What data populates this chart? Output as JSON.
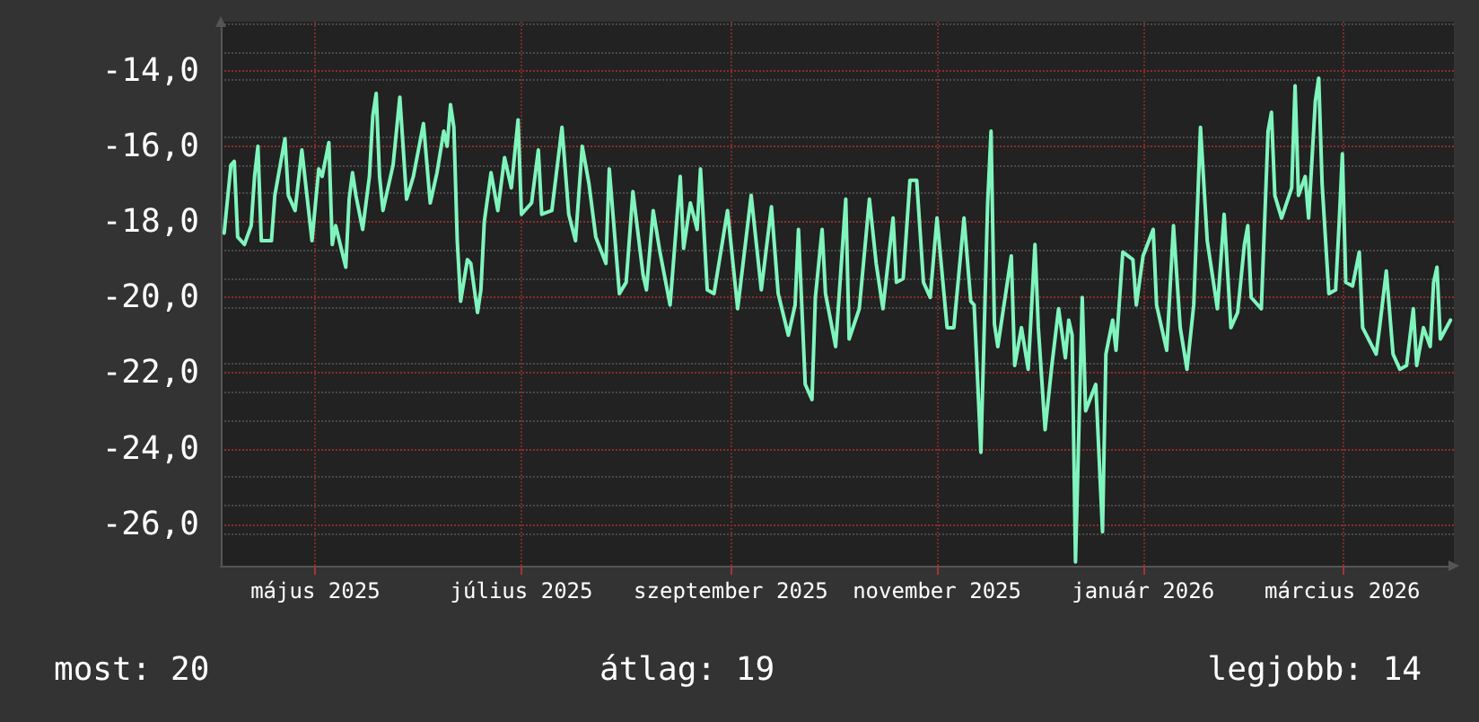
{
  "chart_data": {
    "type": "line",
    "color": "#7ff5bd",
    "grid": true,
    "marker": "none",
    "line_style": "solid",
    "annotations": [
      "most: 20",
      "átlag: 19",
      "legjobb: 14"
    ],
    "xlim": [
      "2025-04-03",
      "2026-04-03"
    ],
    "xticks": [
      {
        "value": "2025-05-01",
        "label": "május 2025"
      },
      {
        "value": "2025-07-01",
        "label": "július 2025"
      },
      {
        "value": "2025-09-01",
        "label": "szeptember 2025"
      },
      {
        "value": "2025-11-01",
        "label": "november 2025"
      },
      {
        "value": "2026-01-01",
        "label": "január 2026"
      },
      {
        "value": "2026-03-01",
        "label": "március 2026"
      }
    ],
    "ylim": [
      -27.1,
      -12.7
    ],
    "yticks": [
      {
        "value": -26,
        "label": "-26,0"
      },
      {
        "value": -24,
        "label": "-24,0"
      },
      {
        "value": -22,
        "label": "-22,0"
      },
      {
        "value": -20,
        "label": "-20,0"
      },
      {
        "value": -18,
        "label": "-18,0"
      },
      {
        "value": -16,
        "label": "-16,0"
      },
      {
        "value": -14,
        "label": "-14,0"
      }
    ],
    "x": [
      "2025-04-04",
      "2025-04-06",
      "2025-04-07",
      "2025-04-08",
      "2025-04-10",
      "2025-04-12",
      "2025-04-13",
      "2025-04-14",
      "2025-04-15",
      "2025-04-18",
      "2025-04-19",
      "2025-04-22",
      "2025-04-23",
      "2025-04-25",
      "2025-04-27",
      "2025-04-30",
      "2025-05-02",
      "2025-05-03",
      "2025-05-05",
      "2025-05-06",
      "2025-05-07",
      "2025-05-10",
      "2025-05-11",
      "2025-05-12",
      "2025-05-13",
      "2025-05-15",
      "2025-05-17",
      "2025-05-18",
      "2025-05-19",
      "2025-05-20",
      "2025-05-21",
      "2025-05-24",
      "2025-05-26",
      "2025-05-28",
      "2025-05-30",
      "2025-06-02",
      "2025-06-04",
      "2025-06-06",
      "2025-06-08",
      "2025-06-09",
      "2025-06-10",
      "2025-06-11",
      "2025-06-12",
      "2025-06-13",
      "2025-06-15",
      "2025-06-16",
      "2025-06-18",
      "2025-06-19",
      "2025-06-20",
      "2025-06-22",
      "2025-06-24",
      "2025-06-26",
      "2025-06-28",
      "2025-06-30",
      "2025-07-01",
      "2025-07-04",
      "2025-07-06",
      "2025-07-07",
      "2025-07-10",
      "2025-07-13",
      "2025-07-15",
      "2025-07-17",
      "2025-07-19",
      "2025-07-21",
      "2025-07-23",
      "2025-07-26",
      "2025-07-27",
      "2025-07-30",
      "2025-08-01",
      "2025-08-03",
      "2025-08-06",
      "2025-08-07",
      "2025-08-09",
      "2025-08-11",
      "2025-08-14",
      "2025-08-17",
      "2025-08-18",
      "2025-08-20",
      "2025-08-22",
      "2025-08-23",
      "2025-08-25",
      "2025-08-27",
      "2025-08-31",
      "2025-09-03",
      "2025-09-07",
      "2025-09-10",
      "2025-09-13",
      "2025-09-15",
      "2025-09-18",
      "2025-09-20",
      "2025-09-21",
      "2025-09-23",
      "2025-09-25",
      "2025-09-26",
      "2025-09-28",
      "2025-09-29",
      "2025-10-02",
      "2025-10-05",
      "2025-10-06",
      "2025-10-09",
      "2025-10-12",
      "2025-10-14",
      "2025-10-16",
      "2025-10-19",
      "2025-10-20",
      "2025-10-22",
      "2025-10-24",
      "2025-10-26",
      "2025-10-28",
      "2025-10-30",
      "2025-11-01",
      "2025-11-04",
      "2025-11-06",
      "2025-11-09",
      "2025-11-11",
      "2025-11-12",
      "2025-11-14",
      "2025-11-16",
      "2025-11-17",
      "2025-11-18",
      "2025-11-19",
      "2025-11-20",
      "2025-11-23",
      "2025-11-24",
      "2025-11-26",
      "2025-11-28",
      "2025-11-30",
      "2025-12-01",
      "2025-12-03",
      "2025-12-05",
      "2025-12-07",
      "2025-12-09",
      "2025-12-10",
      "2025-12-11",
      "2025-12-12",
      "2025-12-14",
      "2025-12-15",
      "2025-12-18",
      "2025-12-20",
      "2025-12-21",
      "2025-12-23",
      "2025-12-24",
      "2025-12-26",
      "2025-12-29",
      "2025-12-30",
      "2026-01-01",
      "2026-01-04",
      "2026-01-05",
      "2026-01-08",
      "2026-01-10",
      "2026-01-12",
      "2026-01-14",
      "2026-01-16",
      "2026-01-18",
      "2026-01-20",
      "2026-01-23",
      "2026-01-25",
      "2026-01-27",
      "2026-01-29",
      "2026-01-31",
      "2026-02-01",
      "2026-02-02",
      "2026-02-05",
      "2026-02-07",
      "2026-02-08",
      "2026-02-09",
      "2026-02-11",
      "2026-02-14",
      "2026-02-15",
      "2026-02-16",
      "2026-02-18",
      "2026-02-19",
      "2026-02-21",
      "2026-02-22",
      "2026-02-23",
      "2026-02-25",
      "2026-02-27",
      "2026-02-28",
      "2026-03-01",
      "2026-03-02",
      "2026-03-04",
      "2026-03-06",
      "2026-03-07",
      "2026-03-11",
      "2026-03-12",
      "2026-03-14",
      "2026-03-16",
      "2026-03-18",
      "2026-03-20",
      "2026-03-22",
      "2026-03-23",
      "2026-03-25",
      "2026-03-27",
      "2026-03-28",
      "2026-03-29",
      "2026-03-30",
      "2026-04-02"
    ],
    "values": [
      -18.3,
      -16.5,
      -16.4,
      -18.4,
      -18.6,
      -18.1,
      -16.8,
      -16.0,
      -18.5,
      -18.5,
      -17.3,
      -15.8,
      -17.3,
      -17.7,
      -16.1,
      -18.5,
      -16.6,
      -16.8,
      -15.9,
      -18.6,
      -18.1,
      -19.2,
      -17.4,
      -16.7,
      -17.3,
      -18.2,
      -16.8,
      -15.2,
      -14.6,
      -16.8,
      -17.7,
      -16.5,
      -14.7,
      -17.4,
      -16.8,
      -15.4,
      -17.5,
      -16.7,
      -15.6,
      -16.0,
      -14.9,
      -15.5,
      -18.5,
      -20.1,
      -19.0,
      -19.1,
      -20.4,
      -19.8,
      -18.0,
      -16.7,
      -17.7,
      -16.3,
      -17.1,
      -15.3,
      -17.8,
      -17.5,
      -16.1,
      -17.8,
      -17.7,
      -15.5,
      -17.8,
      -18.5,
      -16.0,
      -17.0,
      -18.4,
      -19.1,
      -16.6,
      -19.9,
      -19.6,
      -17.2,
      -19.4,
      -19.8,
      -17.7,
      -18.8,
      -20.2,
      -16.8,
      -18.7,
      -17.5,
      -18.2,
      -16.6,
      -19.8,
      -19.9,
      -17.7,
      -20.3,
      -17.3,
      -19.8,
      -17.6,
      -19.9,
      -21.0,
      -20.2,
      -18.2,
      -22.3,
      -22.7,
      -20.0,
      -18.2,
      -19.9,
      -21.3,
      -17.4,
      -21.1,
      -20.3,
      -17.4,
      -19.1,
      -20.3,
      -17.9,
      -19.6,
      -19.5,
      -16.9,
      -16.9,
      -19.6,
      -20.0,
      -17.9,
      -20.8,
      -20.8,
      -17.9,
      -20.1,
      -20.2,
      -24.1,
      -17.5,
      -15.6,
      -20.7,
      -21.3,
      -20.7,
      -18.9,
      -21.8,
      -20.8,
      -21.9,
      -18.6,
      -20.8,
      -23.5,
      -21.8,
      -20.3,
      -21.6,
      -20.6,
      -21.0,
      -27.0,
      -20.0,
      -23.0,
      -22.3,
      -26.2,
      -21.5,
      -20.6,
      -21.4,
      -18.8,
      -19.0,
      -20.2,
      -18.9,
      -18.2,
      -20.2,
      -21.4,
      -18.1,
      -20.8,
      -21.9,
      -20.2,
      -15.5,
      -18.5,
      -20.3,
      -17.8,
      -20.8,
      -20.4,
      -18.6,
      -18.1,
      -20.0,
      -20.3,
      -15.6,
      -15.1,
      -17.3,
      -17.9,
      -17.1,
      -14.4,
      -17.3,
      -16.8,
      -17.9,
      -14.8,
      -14.2,
      -17.0,
      -19.9,
      -19.8,
      -18.1,
      -16.2,
      -19.6,
      -19.7,
      -18.8,
      -20.8,
      -21.5,
      -20.8,
      -19.3,
      -21.5,
      -21.9,
      -21.8,
      -20.3,
      -21.8,
      -20.8,
      -21.3,
      -19.6,
      -19.2,
      -21.1,
      -20.6
    ]
  }
}
